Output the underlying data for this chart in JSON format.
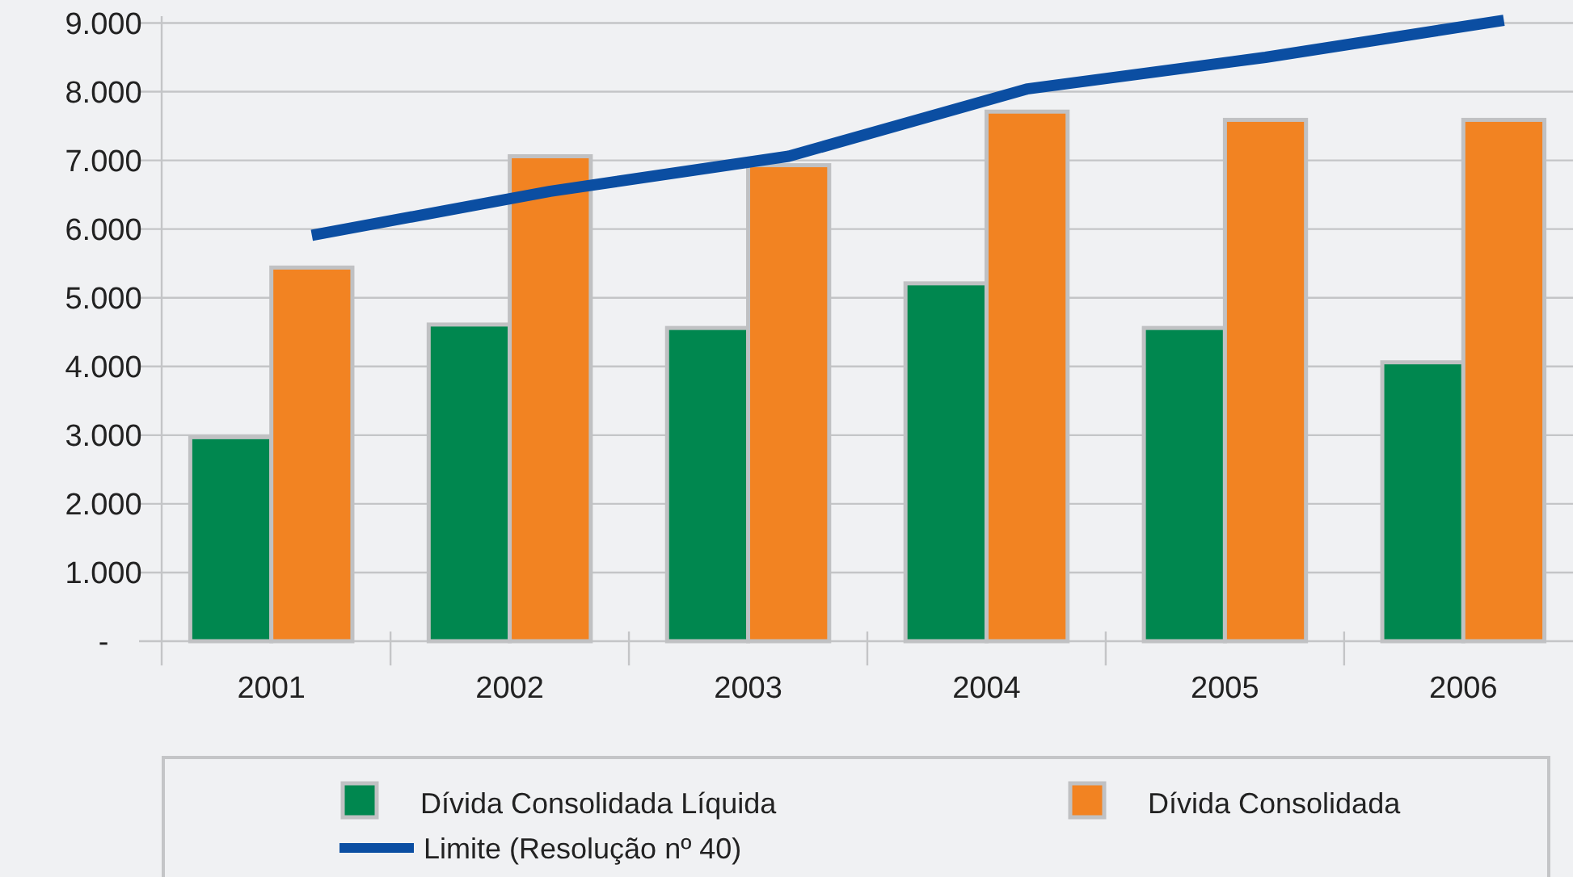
{
  "chart_data": {
    "type": "bar",
    "categories": [
      "2001",
      "2002",
      "2003",
      "2004",
      "2005",
      "2006"
    ],
    "series": [
      {
        "name": "Dívida Consolidada Líquida",
        "color": "#00874f",
        "values": [
          2970,
          4610,
          4560,
          5210,
          4560,
          4060
        ]
      },
      {
        "name": "Dívida Consolidada",
        "color": "#f28322",
        "values": [
          5440,
          7060,
          6930,
          7710,
          7590,
          7590
        ]
      },
      {
        "name": "Limite (Resolução nº 40)",
        "type": "line",
        "color": "#0b4ea2",
        "values": [
          5910,
          6550,
          7060,
          8040,
          8500,
          9040
        ]
      }
    ],
    "ylim": [
      0,
      9100
    ],
    "yticks": [
      {
        "value": 0,
        "label": "-"
      },
      {
        "value": 1000,
        "label": "1.000"
      },
      {
        "value": 2000,
        "label": "2.000"
      },
      {
        "value": 3000,
        "label": "3.000"
      },
      {
        "value": 4000,
        "label": "4.000"
      },
      {
        "value": 5000,
        "label": "5.000"
      },
      {
        "value": 6000,
        "label": "6.000"
      },
      {
        "value": 7000,
        "label": "7.000"
      },
      {
        "value": 8000,
        "label": "8.000"
      },
      {
        "value": 9000,
        "label": "9.000"
      }
    ],
    "grid": "y",
    "legend": "bottom"
  }
}
